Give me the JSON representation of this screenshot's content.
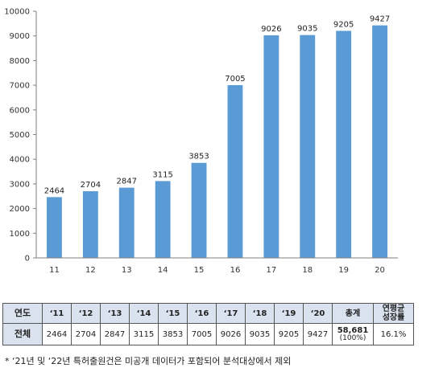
{
  "chart_data": {
    "type": "bar",
    "categories": [
      "11",
      "12",
      "13",
      "14",
      "15",
      "16",
      "17",
      "18",
      "19",
      "20"
    ],
    "values": [
      2464,
      2704,
      2847,
      3115,
      3853,
      7005,
      9026,
      9035,
      9205,
      9427
    ],
    "ylim": [
      0,
      10000
    ],
    "yticks": [
      0,
      1000,
      2000,
      3000,
      4000,
      5000,
      6000,
      7000,
      8000,
      9000,
      10000
    ],
    "grid": false,
    "bar_color": "#5b9bd5"
  },
  "table": {
    "year_header": "연도",
    "years": [
      "‘11",
      "‘12",
      "‘13",
      "‘14",
      "‘15",
      "‘16",
      "‘17",
      "‘18",
      "‘19",
      "‘20"
    ],
    "total_header": "총계",
    "cagr_header_line1": "연평균",
    "cagr_header_line2": "성장률",
    "row_label": "전체",
    "values": [
      "2464",
      "2704",
      "2847",
      "3115",
      "3853",
      "7005",
      "9026",
      "9035",
      "9205",
      "9427"
    ],
    "total_value": "58,681",
    "total_percent": "(100%)",
    "cagr_value": "16.1%"
  },
  "footnote": "* ‘21년 및 ‘22년 특허출원건은 미공개 데이터가 포함되어 분석대상에서 제외"
}
